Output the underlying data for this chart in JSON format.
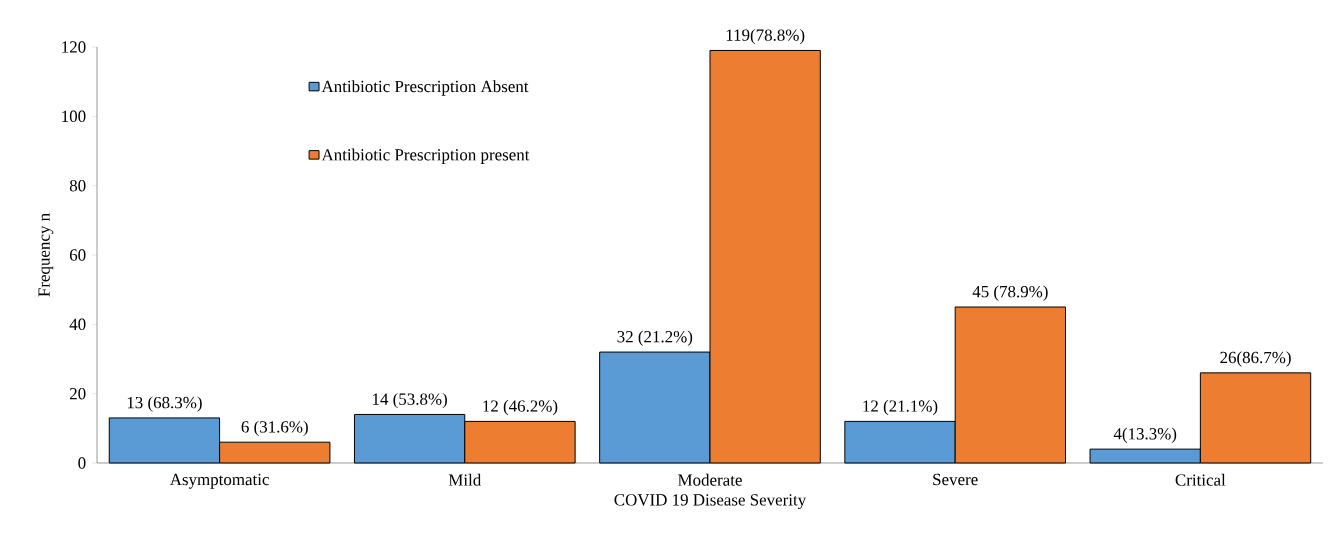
{
  "chart_data": {
    "type": "bar",
    "xlabel": "COVID 19 Disease Severity",
    "ylabel": "Frequency n",
    "categories": [
      "Asymptomatic",
      "Mild",
      "Moderate",
      "Severe",
      "Critical"
    ],
    "series": [
      {
        "name": "Antibiotic Prescription Absent",
        "color": "#5b9bd5",
        "values": [
          13,
          14,
          32,
          12,
          4
        ],
        "value_labels": [
          "13 (68.3%)",
          "14 (53.8%)",
          "32 (21.2%)",
          "12 (21.1%)",
          "4(13.3%)"
        ]
      },
      {
        "name": "Antibiotic Prescription present",
        "color": "#ed7d31",
        "values": [
          6,
          12,
          119,
          45,
          26
        ],
        "value_labels": [
          "6 (31.6%)",
          "12 (46.2%)",
          "119(78.8%)",
          "45 (78.9%)",
          "26(86.7%)"
        ]
      }
    ],
    "ylim": [
      0,
      120
    ],
    "yticks": [
      0,
      20,
      40,
      60,
      80,
      100,
      120
    ],
    "grid": false,
    "legend": "top left"
  }
}
